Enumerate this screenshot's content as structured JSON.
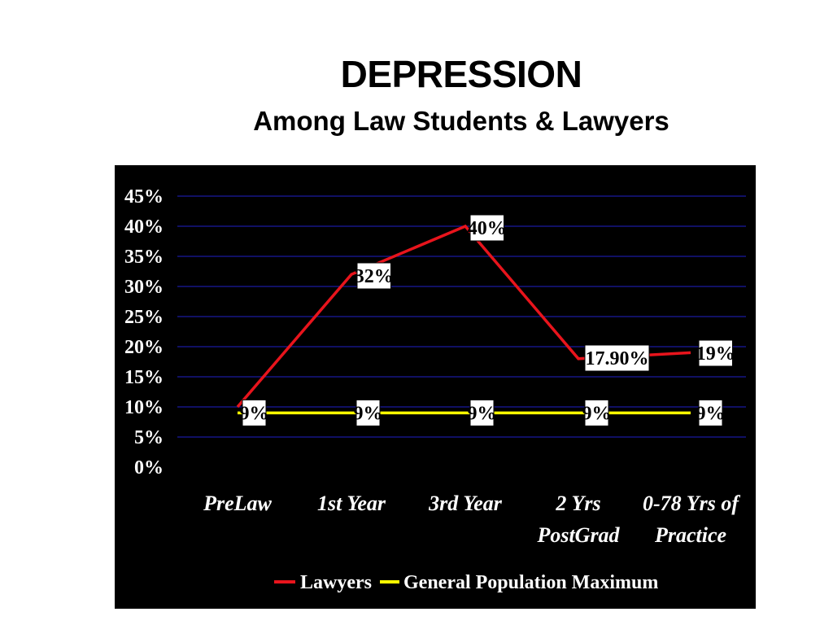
{
  "chart_data": {
    "type": "line",
    "title": "DEPRESSION",
    "subtitle": "Among Law Students & Lawyers",
    "categories": [
      "PreLaw",
      "1st Year",
      "3rd Year",
      "2 Yrs PostGrad",
      "0-78 Yrs of Practice"
    ],
    "category_lines": [
      [
        "PreLaw"
      ],
      [
        "1st Year"
      ],
      [
        "3rd Year"
      ],
      [
        "2 Yrs",
        "PostGrad"
      ],
      [
        "0-78 Yrs of",
        "Practice"
      ]
    ],
    "series": [
      {
        "name": "Lawyers",
        "color": "#e8141c",
        "values": [
          10,
          32,
          40,
          18,
          19
        ],
        "labels": [
          "",
          "32%",
          "40%",
          "17.90%",
          "19%"
        ]
      },
      {
        "name": "General Population Maximum",
        "color": "#ffff00",
        "values": [
          9,
          9,
          9,
          9,
          9
        ],
        "labels": [
          "9%",
          "9%",
          "9%",
          "9%",
          "9%"
        ]
      }
    ],
    "ylim": [
      0,
      45
    ],
    "yticks": [
      "0%",
      "5%",
      "10%",
      "15%",
      "20%",
      "25%",
      "30%",
      "35%",
      "40%",
      "45%"
    ],
    "ytick_values": [
      0,
      5,
      10,
      15,
      20,
      25,
      30,
      35,
      40,
      45
    ],
    "grid": true,
    "grid_color": "#1a1aa0",
    "legend_position": "bottom",
    "background": "#000000"
  }
}
